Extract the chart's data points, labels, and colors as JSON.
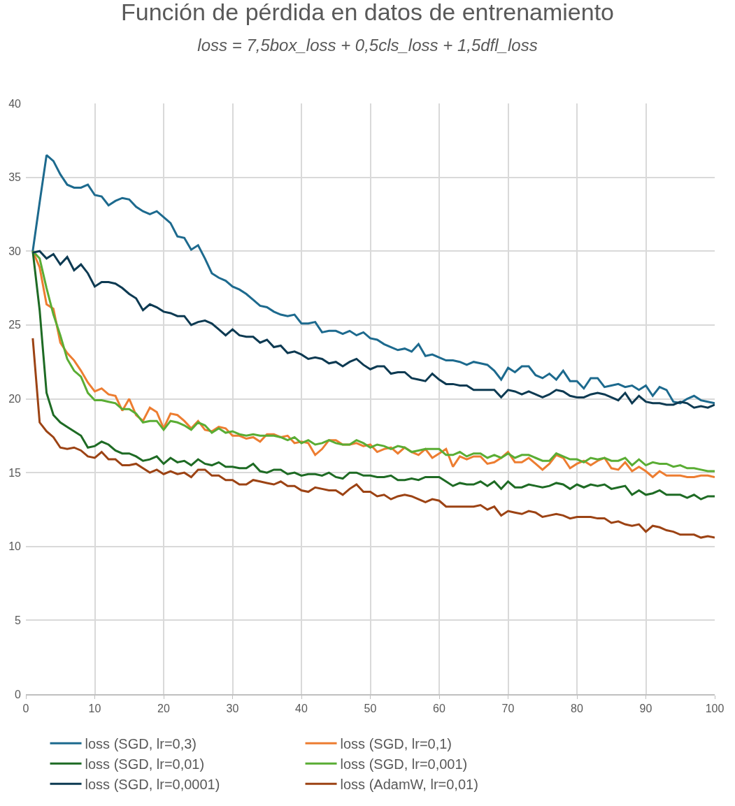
{
  "chart_data": {
    "type": "line",
    "title": "Función de pérdida en datos de entrenamiento",
    "subtitle": "loss = 7,5box_loss + 0,5cls_loss + 1,5dfl_loss",
    "x": [
      1,
      2,
      3,
      4,
      5,
      6,
      7,
      8,
      9,
      10,
      11,
      12,
      13,
      14,
      15,
      16,
      17,
      18,
      19,
      20,
      21,
      22,
      23,
      24,
      25,
      26,
      27,
      28,
      29,
      30,
      31,
      32,
      33,
      34,
      35,
      36,
      37,
      38,
      39,
      40,
      41,
      42,
      43,
      44,
      45,
      46,
      47,
      48,
      49,
      50,
      51,
      52,
      53,
      54,
      55,
      56,
      57,
      58,
      59,
      60,
      61,
      62,
      63,
      64,
      65,
      66,
      67,
      68,
      69,
      70,
      71,
      72,
      73,
      74,
      75,
      76,
      77,
      78,
      79,
      80,
      81,
      82,
      83,
      84,
      85,
      86,
      87,
      88,
      89,
      90,
      91,
      92,
      93,
      94,
      95,
      96,
      97,
      98,
      99,
      100
    ],
    "series": [
      {
        "name": "loss (SGD, lr=0,3)",
        "color": "#1d6a8e",
        "values": [
          30.0,
          33.3,
          36.5,
          36.1,
          35.2,
          34.5,
          34.3,
          34.3,
          34.5,
          33.8,
          33.7,
          33.1,
          33.4,
          33.6,
          33.5,
          33.0,
          32.7,
          32.5,
          32.7,
          32.3,
          31.9,
          31.0,
          30.9,
          30.1,
          30.4,
          29.5,
          28.5,
          28.2,
          28.0,
          27.6,
          27.4,
          27.1,
          26.7,
          26.3,
          26.2,
          25.9,
          25.7,
          25.6,
          25.7,
          25.1,
          25.1,
          25.2,
          24.5,
          24.6,
          24.6,
          24.4,
          24.6,
          24.3,
          24.5,
          24.1,
          24.0,
          23.7,
          23.5,
          23.3,
          23.4,
          23.2,
          23.7,
          22.9,
          23.0,
          22.8,
          22.6,
          22.6,
          22.5,
          22.3,
          22.5,
          22.4,
          22.3,
          21.9,
          21.3,
          22.1,
          21.8,
          22.2,
          22.2,
          21.6,
          21.4,
          21.7,
          21.3,
          21.9,
          21.2,
          21.2,
          20.7,
          21.4,
          21.4,
          20.8,
          20.9,
          21.0,
          20.8,
          20.9,
          20.6,
          20.9,
          20.2,
          20.8,
          20.6,
          19.8,
          19.7,
          20.0,
          20.2,
          19.9,
          19.8,
          19.7
        ]
      },
      {
        "name": "loss (SGD, lr=0,1)",
        "color": "#ed7d31",
        "values": [
          30.0,
          28.9,
          26.4,
          26.1,
          23.8,
          23.1,
          22.6,
          21.9,
          21.1,
          20.5,
          20.7,
          20.3,
          20.2,
          19.2,
          20.0,
          18.9,
          18.5,
          19.4,
          19.1,
          18.0,
          19.0,
          18.9,
          18.5,
          18.0,
          18.5,
          17.9,
          17.8,
          18.1,
          18.0,
          17.5,
          17.5,
          17.3,
          17.4,
          17.1,
          17.6,
          17.6,
          17.4,
          17.5,
          17.0,
          17.1,
          17.0,
          16.2,
          16.6,
          17.2,
          17.2,
          16.9,
          16.9,
          17.0,
          16.8,
          16.9,
          16.4,
          16.6,
          16.7,
          16.3,
          16.7,
          16.4,
          16.2,
          16.6,
          16.0,
          16.3,
          16.6,
          15.4,
          16.1,
          15.9,
          16.1,
          16.1,
          15.6,
          15.7,
          16.0,
          16.4,
          15.7,
          15.7,
          16.0,
          15.6,
          15.2,
          15.6,
          16.2,
          16.0,
          15.3,
          15.6,
          15.8,
          15.5,
          15.8,
          16.0,
          15.3,
          15.2,
          15.7,
          15.1,
          15.4,
          15.1,
          14.7,
          15.1,
          14.8,
          14.8,
          14.8,
          14.7,
          14.7,
          14.8,
          14.8,
          14.7
        ]
      },
      {
        "name": "loss (SGD, lr=0,01)",
        "color": "#1e6b24",
        "values": [
          30.0,
          26.0,
          20.4,
          18.9,
          18.4,
          18.1,
          17.8,
          17.5,
          16.7,
          16.8,
          17.1,
          16.9,
          16.5,
          16.3,
          16.3,
          16.1,
          15.8,
          15.9,
          16.1,
          15.6,
          16.0,
          15.7,
          15.8,
          15.5,
          15.9,
          15.6,
          15.5,
          15.7,
          15.4,
          15.4,
          15.3,
          15.3,
          15.6,
          15.1,
          15.0,
          15.2,
          15.2,
          14.9,
          15.0,
          14.8,
          14.9,
          14.9,
          14.8,
          15.0,
          14.7,
          14.6,
          15.0,
          15.0,
          14.8,
          14.8,
          14.7,
          14.7,
          14.8,
          14.5,
          14.5,
          14.6,
          14.5,
          14.7,
          14.7,
          14.7,
          14.4,
          14.1,
          14.3,
          14.2,
          14.2,
          14.4,
          14.1,
          14.4,
          13.9,
          14.4,
          14.0,
          14.0,
          14.2,
          14.1,
          14.0,
          14.1,
          14.3,
          14.2,
          13.9,
          14.2,
          14.0,
          14.2,
          14.1,
          14.2,
          13.9,
          14.0,
          14.1,
          13.5,
          13.8,
          13.5,
          13.6,
          13.8,
          13.5,
          13.5,
          13.5,
          13.3,
          13.5,
          13.2,
          13.4,
          13.4
        ]
      },
      {
        "name": "loss (SGD, lr=0,001)",
        "color": "#5aad34",
        "values": [
          30.0,
          29.5,
          27.5,
          25.7,
          24.3,
          22.7,
          21.9,
          21.5,
          20.4,
          19.9,
          19.9,
          19.8,
          19.7,
          19.3,
          19.3,
          19.0,
          18.4,
          18.5,
          18.5,
          17.9,
          18.5,
          18.4,
          18.2,
          17.9,
          18.4,
          18.2,
          17.7,
          18.0,
          17.7,
          17.8,
          17.6,
          17.5,
          17.6,
          17.5,
          17.5,
          17.5,
          17.4,
          17.2,
          17.4,
          17.0,
          17.2,
          16.9,
          17.0,
          17.2,
          17.0,
          16.9,
          16.9,
          17.2,
          17.0,
          16.7,
          16.9,
          16.8,
          16.6,
          16.8,
          16.7,
          16.4,
          16.5,
          16.6,
          16.6,
          16.6,
          16.2,
          16.2,
          16.4,
          16.1,
          16.3,
          16.3,
          16.0,
          16.2,
          16.0,
          16.3,
          16.0,
          16.2,
          16.2,
          16.0,
          15.8,
          15.8,
          16.3,
          16.1,
          15.9,
          15.9,
          15.7,
          16.0,
          15.9,
          16.0,
          15.8,
          15.8,
          16.0,
          15.5,
          15.9,
          15.5,
          15.7,
          15.6,
          15.6,
          15.4,
          15.5,
          15.3,
          15.3,
          15.2,
          15.1,
          15.1
        ]
      },
      {
        "name": "loss (SGD, lr=0,0001)",
        "color": "#0d3a52",
        "values": [
          29.9,
          30.0,
          29.5,
          29.8,
          29.1,
          29.6,
          28.7,
          29.1,
          28.5,
          27.6,
          27.9,
          27.9,
          27.8,
          27.5,
          27.1,
          26.8,
          26.0,
          26.4,
          26.2,
          25.9,
          25.8,
          25.6,
          25.6,
          25.0,
          25.2,
          25.3,
          25.1,
          24.7,
          24.3,
          24.7,
          24.3,
          24.2,
          24.2,
          23.8,
          24.0,
          23.5,
          23.6,
          23.1,
          23.2,
          23.0,
          22.7,
          22.8,
          22.7,
          22.4,
          22.5,
          22.2,
          22.5,
          22.7,
          22.3,
          22.0,
          22.2,
          22.2,
          21.7,
          21.8,
          21.8,
          21.4,
          21.3,
          21.2,
          21.7,
          21.3,
          21.0,
          21.0,
          20.9,
          20.9,
          20.6,
          20.6,
          20.6,
          20.6,
          20.1,
          20.6,
          20.5,
          20.3,
          20.5,
          20.3,
          20.1,
          20.3,
          20.6,
          20.5,
          20.2,
          20.1,
          20.1,
          20.3,
          20.4,
          20.3,
          20.1,
          19.9,
          20.4,
          19.7,
          20.2,
          19.8,
          19.7,
          19.7,
          19.6,
          19.6,
          19.8,
          19.7,
          19.4,
          19.5,
          19.4,
          19.6
        ]
      },
      {
        "name": "loss (AdamW, lr=0,01)",
        "color": "#9c4314",
        "values": [
          24.1,
          18.4,
          17.8,
          17.4,
          16.7,
          16.6,
          16.7,
          16.5,
          16.1,
          16.0,
          16.4,
          15.9,
          15.9,
          15.5,
          15.5,
          15.6,
          15.3,
          15.0,
          15.2,
          14.9,
          15.1,
          14.9,
          15.0,
          14.7,
          15.2,
          15.2,
          14.8,
          14.8,
          14.5,
          14.5,
          14.2,
          14.2,
          14.5,
          14.4,
          14.3,
          14.2,
          14.4,
          14.1,
          14.1,
          13.8,
          13.7,
          14.0,
          13.9,
          13.8,
          13.8,
          13.5,
          13.9,
          14.2,
          13.7,
          13.7,
          13.4,
          13.5,
          13.2,
          13.4,
          13.5,
          13.4,
          13.2,
          13.0,
          13.2,
          13.1,
          12.7,
          12.7,
          12.7,
          12.7,
          12.7,
          12.8,
          12.5,
          12.7,
          12.1,
          12.4,
          12.3,
          12.2,
          12.4,
          12.3,
          12.0,
          12.1,
          12.2,
          12.1,
          11.9,
          12.0,
          12.0,
          12.0,
          11.9,
          11.9,
          11.6,
          11.7,
          11.5,
          11.4,
          11.5,
          11.0,
          11.4,
          11.3,
          11.1,
          11.0,
          10.8,
          10.8,
          10.8,
          10.6,
          10.7,
          10.6
        ]
      }
    ],
    "xlim": [
      0,
      100
    ],
    "xticks": [
      0,
      10,
      20,
      30,
      40,
      50,
      60,
      70,
      80,
      90,
      100
    ],
    "ylim": [
      0,
      40
    ],
    "yticks": [
      0,
      5,
      10,
      15,
      20,
      25,
      30,
      35,
      40
    ],
    "grid": true,
    "legend": "bottom",
    "marker": "none",
    "line_style": "solid"
  }
}
